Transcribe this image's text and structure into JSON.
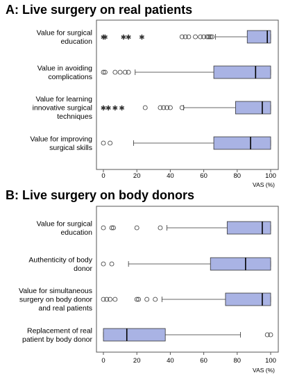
{
  "colors": {
    "box_fill": "#a9b3e4",
    "box_stroke": "#333333",
    "frame": "#555555",
    "outlier": "#333333"
  },
  "chart_data": [
    {
      "type": "boxplot",
      "title": "A: Live surgery on real patients",
      "xlabel": "VAS (%)",
      "xlim": [
        0,
        100
      ],
      "xticks": [
        "0",
        "20",
        "40",
        "60",
        "80",
        "100"
      ],
      "categories": [
        [
          "Value for surgical",
          "education"
        ],
        [
          "Value in avoiding",
          "complications"
        ],
        [
          "Value for learning",
          "innovative surgical",
          "techniques"
        ],
        [
          "Value for improving",
          "surgical skills"
        ]
      ],
      "boxes": [
        {
          "whisker_low": 67,
          "q1": 86,
          "median": 98,
          "q3": 100,
          "whisker_high": 100,
          "outliers": [
            47,
            49,
            51,
            55,
            58,
            60,
            62,
            63,
            64,
            65
          ],
          "extremes": [
            0,
            1,
            12,
            15,
            23
          ]
        },
        {
          "whisker_low": 19,
          "q1": 66,
          "median": 91,
          "q3": 100,
          "whisker_high": 100,
          "outliers": [
            0,
            1,
            7,
            10,
            13,
            15
          ],
          "extremes": []
        },
        {
          "whisker_low": 48,
          "q1": 79,
          "median": 95,
          "q3": 100,
          "whisker_high": 100,
          "outliers": [
            25,
            34,
            36,
            38,
            40,
            47
          ],
          "extremes": [
            0,
            3,
            7,
            11
          ]
        },
        {
          "whisker_low": 18,
          "q1": 66,
          "median": 88,
          "q3": 100,
          "whisker_high": 100,
          "outliers": [
            0,
            4
          ],
          "extremes": []
        }
      ]
    },
    {
      "type": "boxplot",
      "title": "B: Live surgery on body donors",
      "xlabel": "VAS (%)",
      "xlim": [
        0,
        100
      ],
      "xticks": [
        "0",
        "20",
        "40",
        "60",
        "80",
        "100"
      ],
      "categories": [
        [
          "Value for surgical",
          "education"
        ],
        [
          "Authenticity of body",
          "donor"
        ],
        [
          "Value for simultaneous",
          "surgery on body donor",
          "and real patients"
        ],
        [
          "Replacement of real",
          "patient by body donor"
        ]
      ],
      "boxes": [
        {
          "whisker_low": 38,
          "q1": 74,
          "median": 95,
          "q3": 100,
          "whisker_high": 100,
          "outliers": [
            0,
            5,
            6,
            20,
            34
          ],
          "extremes": []
        },
        {
          "whisker_low": 15,
          "q1": 64,
          "median": 85,
          "q3": 100,
          "whisker_high": 100,
          "outliers": [
            0,
            5
          ],
          "extremes": []
        },
        {
          "whisker_low": 35,
          "q1": 73,
          "median": 95,
          "q3": 100,
          "whisker_high": 100,
          "outliers": [
            0,
            2,
            4,
            7,
            20,
            21,
            26,
            31
          ],
          "extremes": []
        },
        {
          "whisker_low": 0,
          "q1": 0,
          "median": 14,
          "q3": 37,
          "whisker_high": 82,
          "outliers": [
            98,
            100
          ],
          "extremes": []
        }
      ]
    }
  ]
}
